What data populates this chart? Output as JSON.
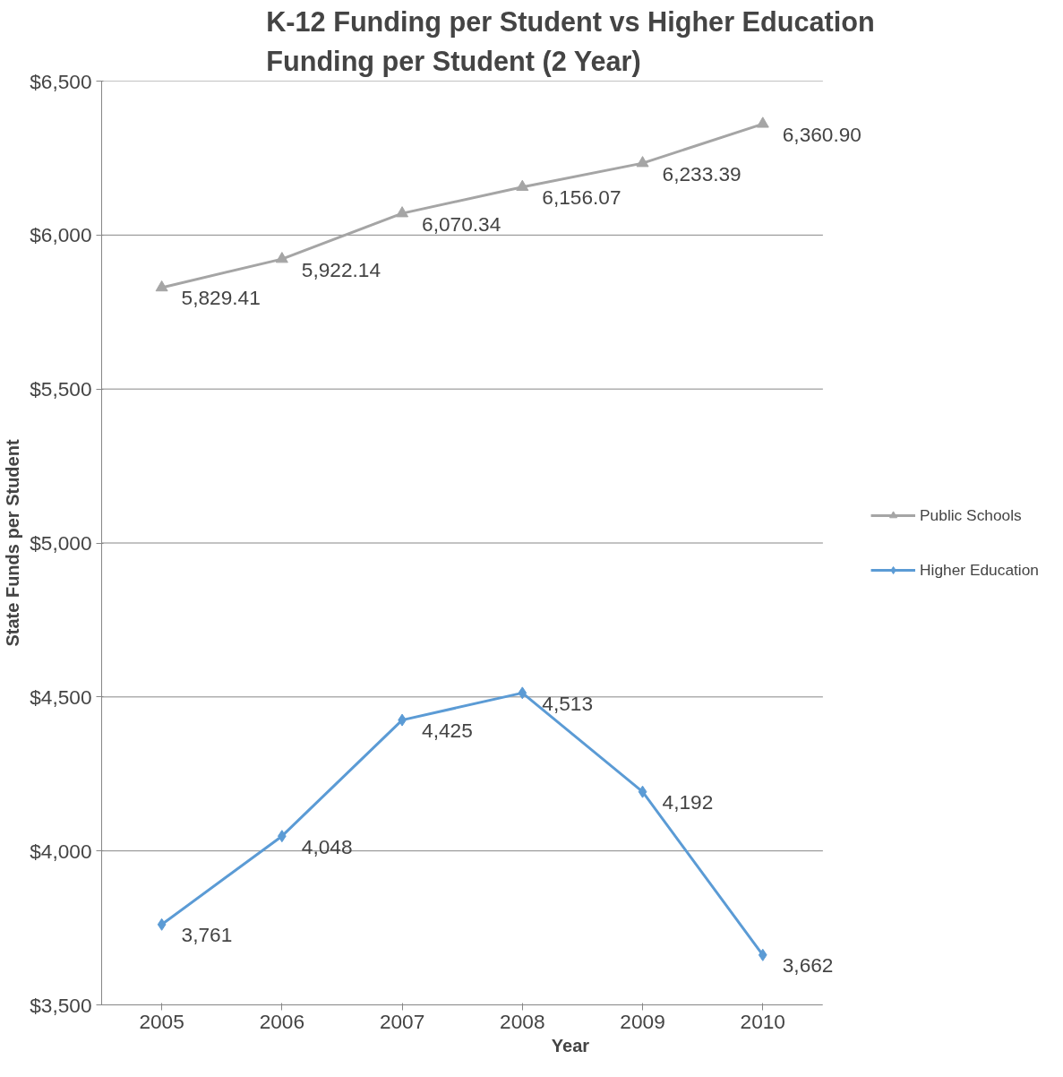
{
  "chart_data": {
    "type": "line",
    "title": "K-12 Funding per Student vs Higher Education Funding per Student (2 Year)",
    "xlabel": "Year",
    "ylabel": "State Funds per Student",
    "categories": [
      "2005",
      "2006",
      "2007",
      "2008",
      "2009",
      "2010"
    ],
    "series": [
      {
        "name": "Public Schools",
        "color": "#a5a5a5",
        "marker": "triangle",
        "values": [
          5829.41,
          5922.14,
          6070.34,
          6156.07,
          6233.39,
          6360.9
        ],
        "value_labels": [
          "5,829.41",
          "5,922.14",
          "6,070.34",
          "6,156.07",
          "6,233.39",
          "6,360.90"
        ]
      },
      {
        "name": "Higher Education",
        "color": "#5b9bd5",
        "marker": "diamond",
        "values": [
          3761,
          4048,
          4425,
          4513,
          4192,
          3662
        ],
        "value_labels": [
          "3,761",
          "4,048",
          "4,425",
          "4,513",
          "4,192",
          "3,662"
        ]
      }
    ],
    "ylim": [
      3500,
      6500
    ],
    "yticks": [
      {
        "value": 3500,
        "label": "$3,500"
      },
      {
        "value": 4000,
        "label": "$4,000"
      },
      {
        "value": 4500,
        "label": "$4,500"
      },
      {
        "value": 5000,
        "label": "$5,000"
      },
      {
        "value": 5500,
        "label": "$5,500"
      },
      {
        "value": 6000,
        "label": "$6,000"
      },
      {
        "value": 6500,
        "label": "$6,500"
      }
    ],
    "grid": "y",
    "legend": "right",
    "line_style": "solid"
  }
}
